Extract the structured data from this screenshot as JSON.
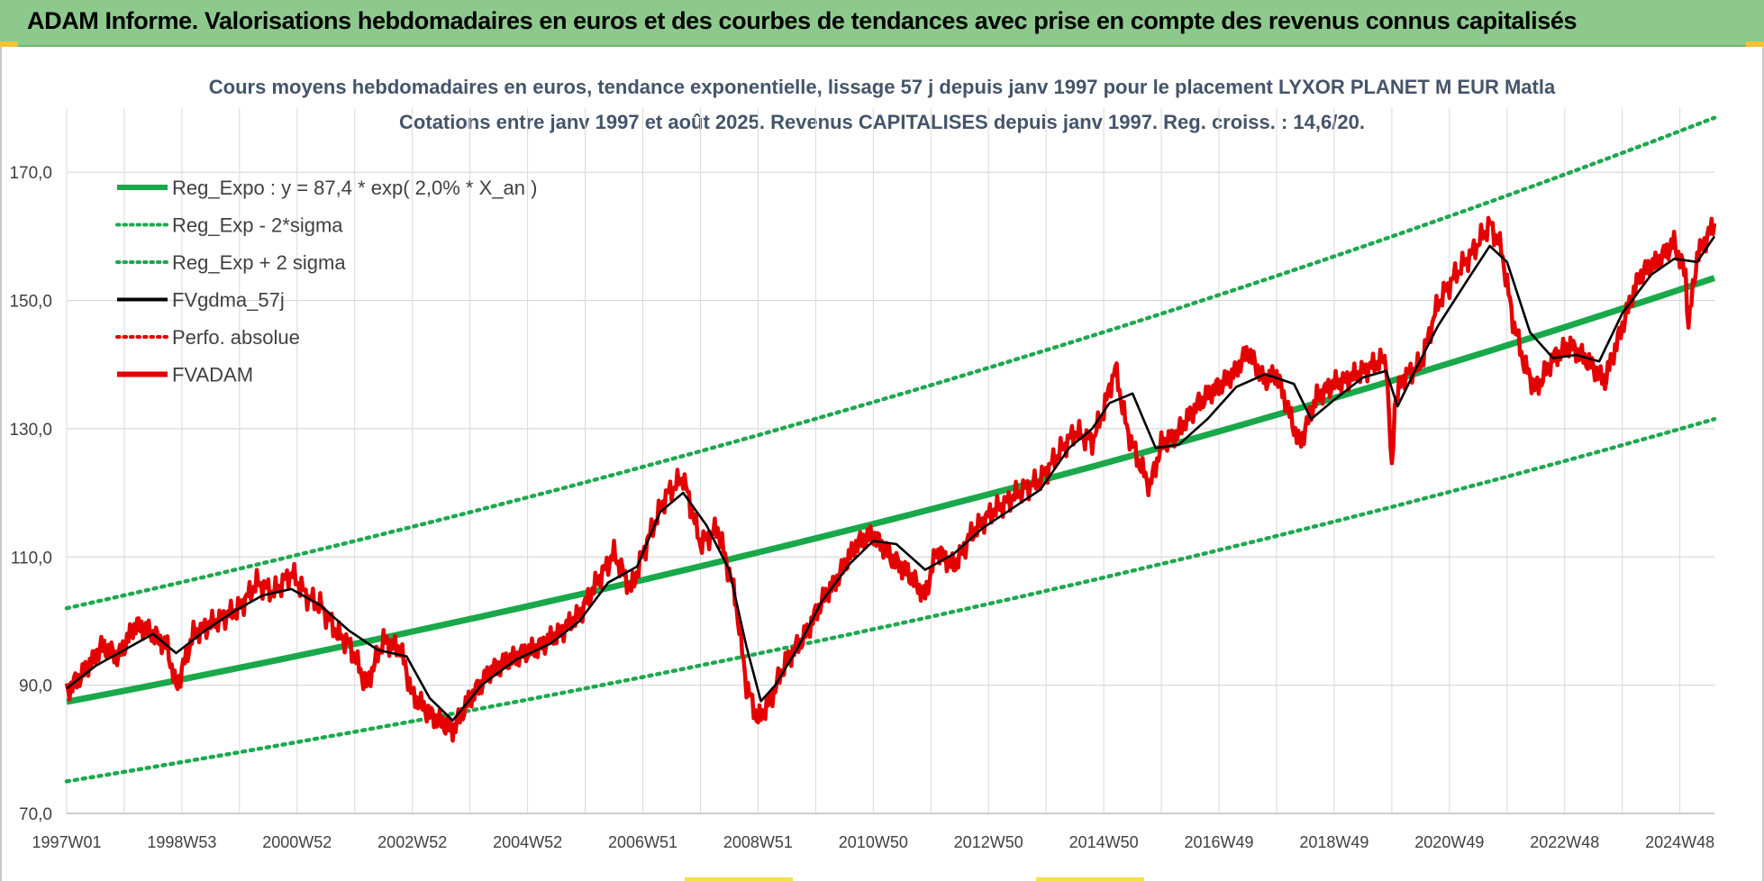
{
  "header": {
    "title": "ADAM Informe. Valorisations hebdomadaires en euros et des courbes de tendances avec prise en compte des revenus connus capitalisés"
  },
  "colors": {
    "title_bar": "#8dc98c",
    "reg_expo": "#19a84a",
    "sigma_bands": "#1fa84f",
    "fvgdma": "#000000",
    "perfo": "#e00000",
    "fvadam": "#e50000",
    "grid": "#d9d9d9"
  },
  "chart_data": {
    "type": "line",
    "title_line1": "Cours moyens hebdomadaires en euros, tendance exponentielle, lissage 57 j depuis janv 1997 pour le placement LYXOR PLANET M EUR Matla",
    "title_line2": "Cotations entre janv 1997 et août 2025.  Revenus CAPITALISES depuis janv 1997. Reg.  croiss. : 14,6/20.",
    "xlabel": "",
    "ylabel": "",
    "x_range": [
      1997.0,
      2025.6
    ],
    "ylim": [
      70,
      180
    ],
    "y_ticks": [
      70,
      90,
      110,
      130,
      150,
      170
    ],
    "y_tick_labels": [
      "70,0",
      "90,0",
      "110,0",
      "130,0",
      "150,0",
      "170,0"
    ],
    "x_tick_labels": [
      "1997W01",
      "1998W53",
      "2000W52",
      "2002W52",
      "2004W52",
      "2006W51",
      "2008W51",
      "2010W50",
      "2012W50",
      "2014W50",
      "2016W49",
      "2018W49",
      "2020W49",
      "2022W48",
      "2024W48"
    ],
    "x_tick_positions": [
      1997.0,
      1999.0,
      2001.0,
      2003.0,
      2005.0,
      2007.0,
      2009.0,
      2011.0,
      2013.0,
      2015.0,
      2017.0,
      2019.0,
      2021.0,
      2023.0,
      2025.0
    ],
    "grid": true,
    "legend_position": "top-left",
    "legend": [
      {
        "name": "Reg_Expo : y = 87,4 * exp( 2,0% *  X_an )",
        "style": "solid-thick",
        "color": "#19a84a"
      },
      {
        "name": "Reg_Exp - 2*sigma",
        "style": "dotted",
        "color": "#1fa84f"
      },
      {
        "name": "Reg_Exp + 2 sigma",
        "style": "dotted",
        "color": "#1fa84f"
      },
      {
        "name": "FVgdma_57j",
        "style": "solid",
        "color": "#000000"
      },
      {
        "name": "Perfo. absolue",
        "style": "dotted",
        "color": "#e00000"
      },
      {
        "name": "FVADAM",
        "style": "solid-thick",
        "color": "#e50000"
      }
    ],
    "regression": {
      "a": 87.4,
      "rate": 0.02
    },
    "band_lower": {
      "start": 75.0,
      "end": 131.5
    },
    "band_upper": {
      "start": 102.0,
      "end": 178.5
    },
    "series": [
      {
        "name": "FVADAM",
        "x": [
          1997.0,
          1997.3,
          1997.6,
          1997.9,
          1998.2,
          1998.5,
          1998.75,
          1998.9,
          1999.2,
          1999.6,
          2000.0,
          2000.3,
          2000.6,
          2000.9,
          2001.2,
          2001.4,
          2001.7,
          2001.9,
          2002.2,
          2002.5,
          2002.8,
          2003.0,
          2003.3,
          2003.7,
          2004.0,
          2004.4,
          2004.8,
          2005.2,
          2005.6,
          2005.9,
          2006.2,
          2006.5,
          2006.8,
          2007.1,
          2007.4,
          2007.7,
          2008.0,
          2008.3,
          2008.6,
          2008.8,
          2009.0,
          2009.2,
          2009.5,
          2009.8,
          2010.1,
          2010.4,
          2010.7,
          2011.0,
          2011.3,
          2011.6,
          2011.9,
          2012.1,
          2012.4,
          2012.7,
          2013.0,
          2013.3,
          2013.6,
          2013.9,
          2014.2,
          2014.5,
          2014.8,
          2015.0,
          2015.2,
          2015.4,
          2015.6,
          2015.8,
          2016.0,
          2016.3,
          2016.6,
          2016.9,
          2017.2,
          2017.5,
          2017.8,
          2018.0,
          2018.2,
          2018.4,
          2018.7,
          2019.0,
          2019.3,
          2019.6,
          2019.9,
          2020.0,
          2020.05,
          2020.2,
          2020.5,
          2020.8,
          2021.1,
          2021.4,
          2021.7,
          2021.9,
          2022.1,
          2022.3,
          2022.5,
          2022.8,
          2023.1,
          2023.4,
          2023.7,
          2024.0,
          2024.3,
          2024.6,
          2024.9,
          2025.1,
          2025.15,
          2025.3,
          2025.6
        ],
        "values": [
          89.0,
          92.0,
          96.0,
          94.5,
          99.5,
          98.0,
          96.0,
          89.5,
          98.0,
          100.0,
          102.0,
          106.0,
          104.5,
          107.5,
          103.5,
          102.5,
          98.0,
          96.5,
          90.0,
          97.0,
          95.5,
          88.5,
          85.5,
          83.0,
          88.0,
          92.5,
          94.5,
          96.0,
          98.5,
          101.0,
          106.0,
          110.5,
          105.0,
          113.0,
          119.5,
          122.5,
          112.0,
          114.5,
          104.0,
          90.0,
          84.5,
          87.5,
          94.0,
          97.5,
          103.0,
          107.0,
          112.0,
          113.5,
          110.0,
          107.5,
          104.0,
          111.0,
          108.5,
          113.5,
          116.5,
          118.5,
          120.5,
          122.0,
          126.0,
          129.5,
          128.0,
          133.0,
          139.5,
          130.0,
          125.0,
          121.0,
          127.5,
          129.5,
          133.5,
          136.0,
          138.0,
          142.0,
          137.5,
          138.5,
          133.0,
          127.5,
          135.0,
          137.0,
          138.0,
          139.5,
          141.0,
          123.0,
          134.0,
          138.0,
          140.0,
          149.5,
          154.0,
          157.5,
          162.0,
          158.0,
          147.0,
          140.0,
          136.0,
          141.0,
          143.0,
          140.5,
          137.5,
          146.0,
          154.0,
          156.0,
          159.0,
          154.0,
          146.0,
          157.0,
          162.0
        ]
      },
      {
        "name": "FVgdma_57j",
        "x": [
          1997.0,
          1997.5,
          1998.0,
          1998.5,
          1998.9,
          1999.4,
          1999.9,
          2000.4,
          2000.9,
          2001.4,
          2001.9,
          2002.4,
          2002.9,
          2003.3,
          2003.7,
          2004.2,
          2004.8,
          2005.4,
          2005.9,
          2006.4,
          2006.9,
          2007.3,
          2007.7,
          2008.1,
          2008.5,
          2008.8,
          2009.05,
          2009.3,
          2009.7,
          2010.1,
          2010.6,
          2011.0,
          2011.4,
          2011.9,
          2012.4,
          2012.9,
          2013.4,
          2013.9,
          2014.4,
          2014.8,
          2015.1,
          2015.5,
          2015.9,
          2016.3,
          2016.8,
          2017.3,
          2017.8,
          2018.3,
          2018.6,
          2019.0,
          2019.5,
          2019.9,
          2020.1,
          2020.4,
          2020.8,
          2021.3,
          2021.7,
          2022.0,
          2022.4,
          2022.8,
          2023.2,
          2023.6,
          2024.0,
          2024.5,
          2024.9,
          2025.3,
          2025.6
        ],
        "values": [
          89.5,
          93.0,
          95.5,
          98.0,
          95.0,
          98.5,
          101.5,
          104.0,
          105.0,
          102.5,
          98.5,
          95.5,
          94.5,
          88.0,
          84.5,
          90.0,
          94.0,
          96.5,
          100.0,
          106.0,
          108.5,
          117.0,
          120.0,
          115.0,
          108.0,
          96.0,
          87.5,
          90.0,
          96.0,
          103.0,
          109.0,
          112.5,
          112.0,
          108.0,
          110.5,
          114.5,
          117.5,
          120.5,
          127.0,
          130.0,
          134.0,
          135.5,
          127.0,
          127.5,
          131.5,
          136.5,
          138.5,
          137.0,
          131.5,
          134.5,
          138.0,
          139.0,
          133.5,
          139.0,
          146.0,
          153.0,
          158.5,
          156.0,
          145.0,
          141.0,
          141.5,
          140.5,
          148.0,
          154.0,
          156.5,
          156.0,
          160.0
        ]
      },
      {
        "name": "Reg_Expo : y = 87,4 * exp( 2,0% *  X_an )",
        "x": [
          1997.0,
          2025.6
        ],
        "values": [
          87.4,
          153.5
        ]
      }
    ]
  }
}
